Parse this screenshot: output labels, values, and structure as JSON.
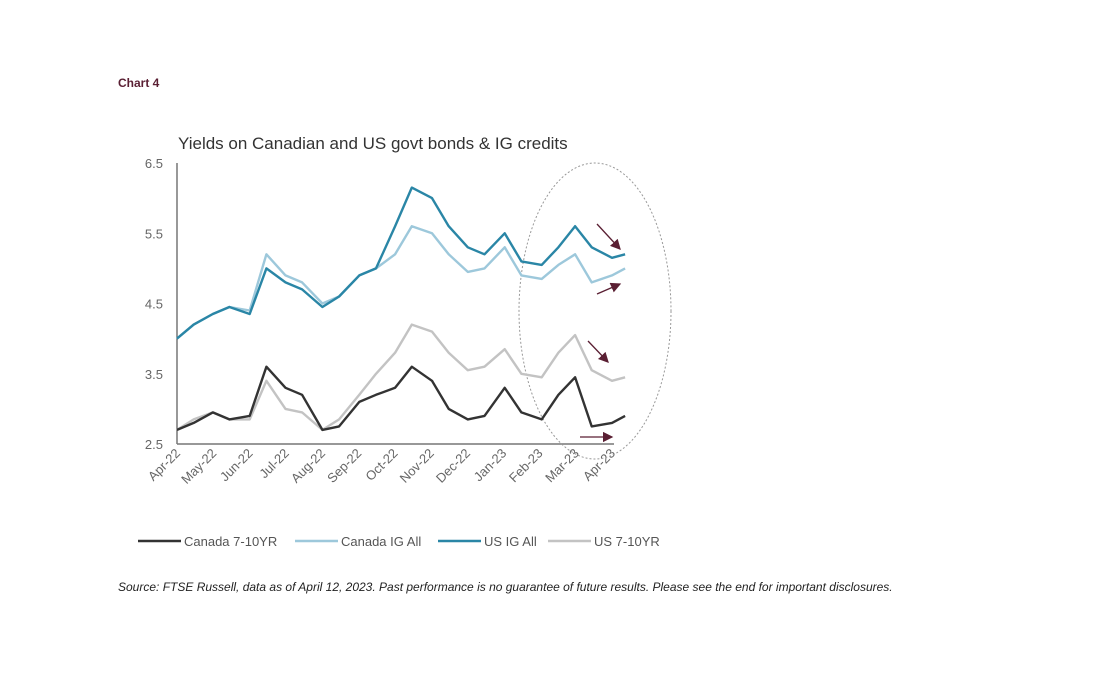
{
  "chart_label": "Chart 4",
  "source": "Source: FTSE Russell, data as of April 12, 2023. Past performance is no guarantee of future results. Please see the end for important disclosures.",
  "colors": {
    "annotation_arrow": "#5a1f33",
    "ellipse": "#999999"
  },
  "chart_data": {
    "type": "line",
    "title": "Yields on Canadian and US govt bonds & IG credits",
    "xlabel": "",
    "ylabel": "",
    "ylim": [
      2.5,
      6.5
    ],
    "yticks": [
      "2.5",
      "3.5",
      "4.5",
      "5.5",
      "6.5"
    ],
    "xticks": [
      "Apr-22",
      "May-22",
      "Jun-22",
      "Jul-22",
      "Aug-22",
      "Sep-22",
      "Oct-22",
      "Nov-22",
      "Dec-22",
      "Jan-23",
      "Feb-23",
      "Mar-23",
      "Apr-23"
    ],
    "grid": false,
    "legend": "bottom",
    "x": [
      "2022-04-01",
      "2022-04-15",
      "2022-05-01",
      "2022-05-15",
      "2022-06-01",
      "2022-06-15",
      "2022-07-01",
      "2022-07-15",
      "2022-08-01",
      "2022-08-15",
      "2022-09-01",
      "2022-09-15",
      "2022-10-01",
      "2022-10-15",
      "2022-11-01",
      "2022-11-15",
      "2022-12-01",
      "2022-12-15",
      "2023-01-01",
      "2023-01-15",
      "2023-02-01",
      "2023-02-15",
      "2023-03-01",
      "2023-03-15",
      "2023-04-01",
      "2023-04-12"
    ],
    "series": [
      {
        "name": "Canada 7-10YR",
        "color": "#333333",
        "values": [
          2.7,
          2.8,
          2.95,
          2.85,
          2.9,
          3.6,
          3.3,
          3.2,
          2.7,
          2.75,
          3.1,
          3.2,
          3.3,
          3.6,
          3.4,
          3.0,
          2.85,
          2.9,
          3.3,
          2.95,
          2.85,
          3.2,
          3.45,
          2.75,
          2.8,
          2.9
        ]
      },
      {
        "name": "Canada IG All",
        "color": "#9dc8db",
        "values": [
          4.0,
          4.2,
          4.35,
          4.45,
          4.4,
          5.2,
          4.9,
          4.8,
          4.5,
          4.6,
          4.9,
          5.0,
          5.2,
          5.6,
          5.5,
          5.2,
          4.95,
          5.0,
          5.3,
          4.9,
          4.85,
          5.05,
          5.2,
          4.8,
          4.9,
          5.0
        ]
      },
      {
        "name": "US IG All",
        "color": "#2a86a6",
        "values": [
          4.0,
          4.2,
          4.35,
          4.45,
          4.35,
          5.0,
          4.8,
          4.7,
          4.45,
          4.6,
          4.9,
          5.0,
          5.6,
          6.15,
          6.0,
          5.6,
          5.3,
          5.2,
          5.5,
          5.1,
          5.05,
          5.3,
          5.6,
          5.3,
          5.15,
          5.2
        ]
      },
      {
        "name": "US 7-10YR",
        "color": "#c3c3c3",
        "values": [
          2.7,
          2.85,
          2.95,
          2.85,
          2.85,
          3.4,
          3.0,
          2.95,
          2.7,
          2.85,
          3.2,
          3.5,
          3.8,
          4.2,
          4.1,
          3.8,
          3.55,
          3.6,
          3.85,
          3.5,
          3.45,
          3.8,
          4.05,
          3.55,
          3.4,
          3.45
        ]
      }
    ]
  }
}
